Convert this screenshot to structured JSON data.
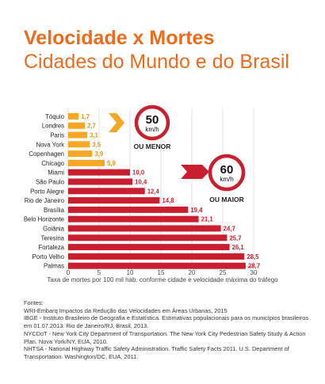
{
  "title": "Velocidade x Mortes",
  "subtitle": "Cidades do Mundo e do Brasil",
  "chart_data": {
    "type": "bar",
    "orientation": "horizontal",
    "categories": [
      "Tóquio",
      "Londres",
      "Paris",
      "Nova York",
      "Copenhagen",
      "Chicago",
      "Miami",
      "São Paulo",
      "Porto Alegre",
      "Rio de Janeiro",
      "Brasília",
      "Belo Horizonte",
      "Goiânia",
      "Teresina",
      "Fortaleza",
      "Porto Velho",
      "Palmas"
    ],
    "values": [
      1.7,
      2.7,
      3.1,
      3.5,
      3.9,
      5.9,
      10.0,
      10.4,
      12.4,
      14.8,
      19.4,
      21.1,
      24.7,
      25.7,
      26.1,
      28.5,
      28.7
    ],
    "value_labels": [
      "1,7",
      "2,7",
      "3,1",
      "3,5",
      "3,9",
      "5,9",
      "10,0",
      "10,4",
      "12,4",
      "14,8",
      "19,4",
      "21,1",
      "24,7",
      "25,7",
      "26,1",
      "28,5",
      "28,7"
    ],
    "groups": [
      {
        "first": 0,
        "last": 5,
        "color": "#f5a623"
      },
      {
        "first": 6,
        "last": 16,
        "color": "#c91e2f"
      }
    ],
    "xlim": [
      0,
      30
    ],
    "xticks": [
      0,
      5,
      10,
      15,
      20,
      25,
      30
    ],
    "grid": "vertical",
    "xlabel": "Taxa de mortes por 100 mil hab. conforme cidade e velocidade máxima do tráfego",
    "annotations": [
      {
        "sign_value": "50",
        "unit": "km/h",
        "label": "OU MENOR",
        "arrow_color": "#f5a623"
      },
      {
        "sign_value": "60",
        "unit": "km/h",
        "label": "OU MAIOR",
        "arrow_color": "#c91e2f"
      }
    ]
  },
  "sources": {
    "heading": "Fontes:",
    "items": [
      "WRI-Embarq Impactos da Redução das Velocidades em Áreas Urbanas, 2015",
      "IBGE - Instituto Brasileiro de Geografia e Estatística. Estimativas populacionais para os municípios brasileiros em 01.07.2013. Rio de Janeiro/RJ, Brasil, 2013.",
      "NYCDoT - New York City Department of Transportation. The New York City Pedestrian Safety Study & Action Plan. Nova York/NY, EUA, 2010.",
      "NHTSA - National Highway Traffic Safety Administration. Traffic Safety Facts 2011. U.S. Department of Transportation. Washington/DC, EUA, 2011."
    ]
  }
}
